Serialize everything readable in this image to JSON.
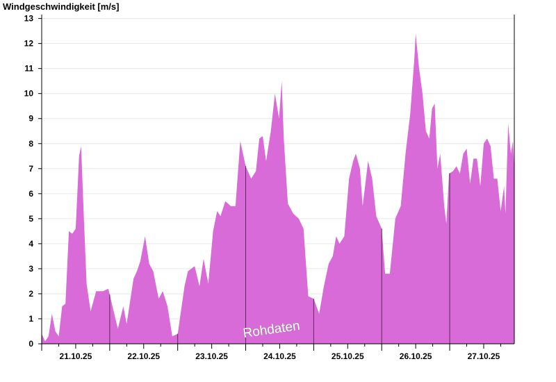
{
  "chart_data": {
    "type": "area",
    "title": "Windgeschwindigkeit [m/s]",
    "xlabel": "",
    "ylabel": "",
    "watermark": "Rohdaten",
    "ylim": [
      0,
      13.1
    ],
    "yticks": [
      0,
      1,
      2,
      3,
      4,
      5,
      6,
      7,
      8,
      9,
      10,
      11,
      12,
      13
    ],
    "xlim": [
      0,
      6.95
    ],
    "xtick_labels": [
      {
        "x": 0.5,
        "label": "21.10.25"
      },
      {
        "x": 1.5,
        "label": "22.10.25"
      },
      {
        "x": 2.5,
        "label": "23.10.25"
      },
      {
        "x": 3.5,
        "label": "24.10.25"
      },
      {
        "x": 4.5,
        "label": "25.10.25"
      },
      {
        "x": 5.5,
        "label": "26.10.25"
      },
      {
        "x": 6.5,
        "label": "27.10.25"
      }
    ],
    "grid": true,
    "fill_color": "#d86bd8",
    "series": [
      {
        "values": [
          [
            0.0,
            0.4
          ],
          [
            0.05,
            0.1
          ],
          [
            0.1,
            0.3
          ],
          [
            0.15,
            1.2
          ],
          [
            0.2,
            0.5
          ],
          [
            0.25,
            0.3
          ],
          [
            0.3,
            1.5
          ],
          [
            0.35,
            1.6
          ],
          [
            0.4,
            4.5
          ],
          [
            0.45,
            4.4
          ],
          [
            0.5,
            4.6
          ],
          [
            0.55,
            7.5
          ],
          [
            0.58,
            7.9
          ],
          [
            0.62,
            5.0
          ],
          [
            0.66,
            2.4
          ],
          [
            0.72,
            1.3
          ],
          [
            0.8,
            2.1
          ],
          [
            0.9,
            2.1
          ],
          [
            0.98,
            2.2
          ],
          [
            1.05,
            1.4
          ],
          [
            1.12,
            0.6
          ],
          [
            1.2,
            1.5
          ],
          [
            1.25,
            0.8
          ],
          [
            1.35,
            2.6
          ],
          [
            1.4,
            2.9
          ],
          [
            1.45,
            3.3
          ],
          [
            1.52,
            4.3
          ],
          [
            1.58,
            3.2
          ],
          [
            1.64,
            2.9
          ],
          [
            1.72,
            1.8
          ],
          [
            1.78,
            2.1
          ],
          [
            1.85,
            1.5
          ],
          [
            1.92,
            0.3
          ],
          [
            2.0,
            0.4
          ],
          [
            2.1,
            2.3
          ],
          [
            2.15,
            2.9
          ],
          [
            2.25,
            3.1
          ],
          [
            2.32,
            2.3
          ],
          [
            2.38,
            3.4
          ],
          [
            2.45,
            2.4
          ],
          [
            2.52,
            4.5
          ],
          [
            2.58,
            5.3
          ],
          [
            2.63,
            5.1
          ],
          [
            2.7,
            5.7
          ],
          [
            2.78,
            5.5
          ],
          [
            2.85,
            5.5
          ],
          [
            2.92,
            8.1
          ],
          [
            3.0,
            7.1
          ],
          [
            3.08,
            6.6
          ],
          [
            3.15,
            6.9
          ],
          [
            3.2,
            8.2
          ],
          [
            3.25,
            8.3
          ],
          [
            3.3,
            7.3
          ],
          [
            3.37,
            8.5
          ],
          [
            3.43,
            10.0
          ],
          [
            3.49,
            9.0
          ],
          [
            3.53,
            10.5
          ],
          [
            3.56,
            8.2
          ],
          [
            3.62,
            5.6
          ],
          [
            3.7,
            5.2
          ],
          [
            3.78,
            5.0
          ],
          [
            3.85,
            4.6
          ],
          [
            3.92,
            1.9
          ],
          [
            4.0,
            1.8
          ],
          [
            4.08,
            1.2
          ],
          [
            4.15,
            2.3
          ],
          [
            4.22,
            3.2
          ],
          [
            4.28,
            3.5
          ],
          [
            4.33,
            4.3
          ],
          [
            4.38,
            4.0
          ],
          [
            4.45,
            4.3
          ],
          [
            4.52,
            6.6
          ],
          [
            4.58,
            7.3
          ],
          [
            4.62,
            7.6
          ],
          [
            4.68,
            7.0
          ],
          [
            4.72,
            5.5
          ],
          [
            4.8,
            7.3
          ],
          [
            4.86,
            6.6
          ],
          [
            4.92,
            5.1
          ],
          [
            5.0,
            4.6
          ],
          [
            5.05,
            2.8
          ],
          [
            5.12,
            2.8
          ],
          [
            5.2,
            5.0
          ],
          [
            5.28,
            5.5
          ],
          [
            5.35,
            7.6
          ],
          [
            5.42,
            9.2
          ],
          [
            5.48,
            11.4
          ],
          [
            5.5,
            12.4
          ],
          [
            5.55,
            11.0
          ],
          [
            5.6,
            10.0
          ],
          [
            5.65,
            8.5
          ],
          [
            5.7,
            8.2
          ],
          [
            5.74,
            9.4
          ],
          [
            5.78,
            9.6
          ],
          [
            5.82,
            7.0
          ],
          [
            5.86,
            7.6
          ],
          [
            5.92,
            5.5
          ],
          [
            5.95,
            4.8
          ],
          [
            5.99,
            6.8
          ],
          [
            6.05,
            6.9
          ],
          [
            6.1,
            7.1
          ],
          [
            6.15,
            6.8
          ],
          [
            6.2,
            7.6
          ],
          [
            6.25,
            7.8
          ],
          [
            6.3,
            6.4
          ],
          [
            6.35,
            7.4
          ],
          [
            6.4,
            7.4
          ],
          [
            6.45,
            6.3
          ],
          [
            6.5,
            8.0
          ],
          [
            6.55,
            8.2
          ],
          [
            6.6,
            7.9
          ],
          [
            6.65,
            6.6
          ],
          [
            6.7,
            6.6
          ],
          [
            6.75,
            5.3
          ],
          [
            6.8,
            6.3
          ],
          [
            6.82,
            5.2
          ],
          [
            6.86,
            8.8
          ],
          [
            6.9,
            7.6
          ],
          [
            6.93,
            8.1
          ],
          [
            6.95,
            6.9
          ]
        ]
      }
    ]
  }
}
